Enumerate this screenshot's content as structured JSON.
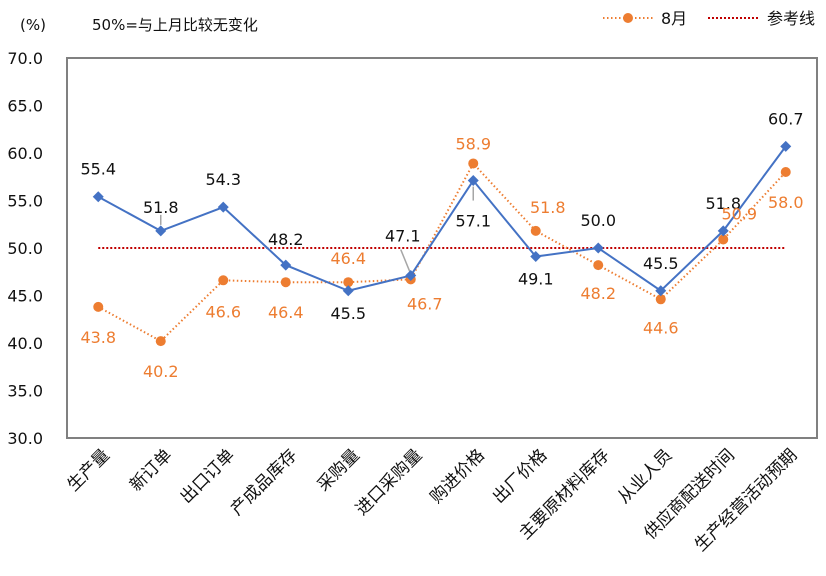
{
  "chart_data": {
    "type": "line",
    "unit_label": "(%)",
    "annotation": "50%=与上月比较无变化",
    "categories": [
      "生产量",
      "新订单",
      "出口订单",
      "产成品库存",
      "采购量",
      "进口采购量",
      "购进价格",
      "出厂价格",
      "主要原材料库存",
      "从业人员",
      "供应商配送时间",
      "生产经营活动预期"
    ],
    "series": [
      {
        "name": "",
        "color": "#4472C4",
        "marker": "diamond",
        "style": "solid",
        "in_legend": false,
        "values": [
          55.4,
          51.8,
          54.3,
          48.2,
          45.5,
          47.1,
          57.1,
          49.1,
          50.0,
          45.5,
          51.8,
          60.7
        ]
      },
      {
        "name": "8月",
        "color": "#ED7D31",
        "marker": "circle",
        "style": "dotted",
        "in_legend": true,
        "values": [
          43.8,
          40.2,
          46.6,
          46.4,
          46.4,
          46.7,
          58.9,
          51.8,
          48.2,
          44.6,
          50.9,
          58.0
        ]
      }
    ],
    "reference_line": {
      "name": "参考线",
      "value": 50.0,
      "color": "#C00000",
      "style": "dotted"
    },
    "ylim": [
      30,
      70
    ],
    "yticks": [
      "30.0",
      "35.0",
      "40.0",
      "45.0",
      "50.0",
      "55.0",
      "60.0",
      "65.0",
      "70.0"
    ],
    "ytick_values": [
      30,
      35,
      40,
      45,
      50,
      55,
      60,
      65,
      70
    ],
    "grid": false,
    "legend_position": "top-right",
    "xlabel": "",
    "ylabel": "(%)"
  }
}
